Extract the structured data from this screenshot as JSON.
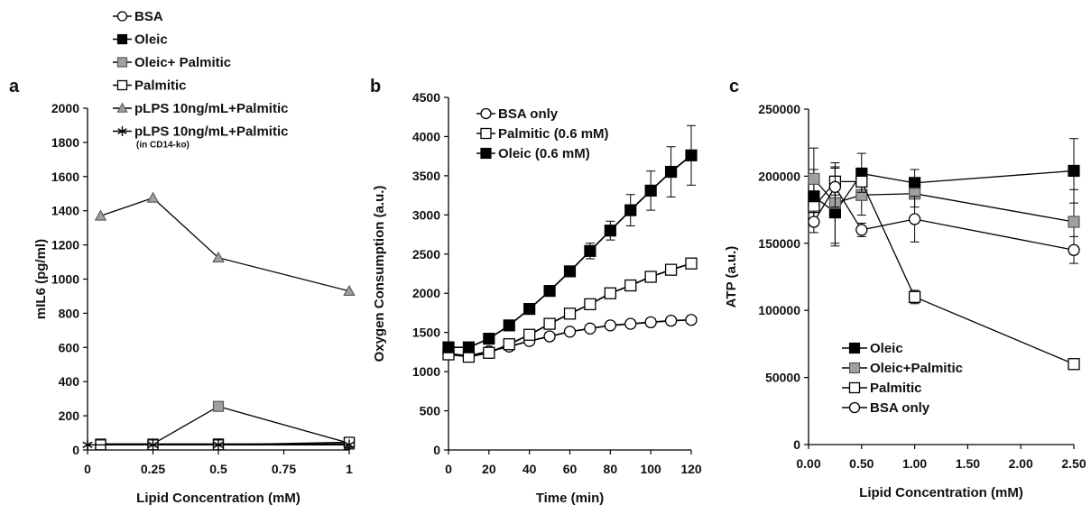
{
  "chart_data": [
    {
      "panel": "a",
      "type": "line",
      "xlabel": "Lipid Concentration (mM)",
      "ylabel": "mIL6 (pg/ml)",
      "xlim": [
        0,
        1
      ],
      "ylim": [
        0,
        2000
      ],
      "x_ticks": [
        "0",
        "0.25",
        "0.5",
        "0.75",
        "1"
      ],
      "y_ticks": [
        "0",
        "200",
        "400",
        "600",
        "800",
        "1000",
        "1200",
        "1400",
        "1600",
        "1800",
        "2000"
      ],
      "legend_position": "top",
      "series": [
        {
          "name": "BSA",
          "marker": "circle-open",
          "color": "#ffffff",
          "x": [
            0.05,
            0.25,
            0.5,
            1
          ],
          "y": [
            35,
            35,
            35,
            35
          ]
        },
        {
          "name": "Oleic",
          "marker": "square-filled",
          "color": "#000000",
          "x": [
            0.05,
            0.25,
            0.5,
            1
          ],
          "y": [
            35,
            35,
            35,
            35
          ]
        },
        {
          "name": "Oleic+ Palmitic",
          "marker": "square-gray",
          "color": "#a0a0a0",
          "x": [
            0.05,
            0.25,
            0.5,
            1
          ],
          "y": [
            35,
            35,
            255,
            40
          ]
        },
        {
          "name": "Palmitic",
          "marker": "square-open",
          "color": "#ffffff",
          "x": [
            0.05,
            0.25,
            0.5,
            1
          ],
          "y": [
            30,
            30,
            30,
            45
          ]
        },
        {
          "name": "pLPS 10ng/mL+Palmitic",
          "marker": "triangle-gray",
          "color": "#a0a0a0",
          "x": [
            0.05,
            0.25,
            0.5,
            1
          ],
          "y": [
            1370,
            1475,
            1125,
            930
          ]
        },
        {
          "name": "pLPS 10ng/mL+Palmitic",
          "name_note": "(in CD14-ko)",
          "marker": "star",
          "color": "#000000",
          "x": [
            0,
            0.25,
            0.5,
            1
          ],
          "y": [
            30,
            30,
            30,
            30
          ]
        }
      ]
    },
    {
      "panel": "b",
      "type": "line",
      "xlabel": "Time (min)",
      "ylabel": "Oxygen Consumption (a.u.)",
      "xlim": [
        0,
        120
      ],
      "ylim": [
        0,
        4500
      ],
      "x_ticks": [
        "0",
        "20",
        "40",
        "60",
        "80",
        "100",
        "120"
      ],
      "y_ticks": [
        "0",
        "500",
        "1000",
        "1500",
        "2000",
        "2500",
        "3000",
        "3500",
        "4000",
        "4500"
      ],
      "legend_position": "top-left",
      "series": [
        {
          "name": "BSA only",
          "marker": "circle-open",
          "color": "#ffffff",
          "x": [
            0,
            10,
            20,
            30,
            40,
            50,
            60,
            70,
            80,
            90,
            100,
            110,
            120
          ],
          "y": [
            1230,
            1200,
            1260,
            1320,
            1390,
            1450,
            1510,
            1550,
            1590,
            1610,
            1630,
            1650,
            1660
          ]
        },
        {
          "name": "Palmitic (0.6 mM)",
          "marker": "square-open",
          "color": "#ffffff",
          "x": [
            0,
            10,
            20,
            30,
            40,
            50,
            60,
            70,
            80,
            90,
            100,
            110,
            120
          ],
          "y": [
            1220,
            1190,
            1240,
            1350,
            1470,
            1610,
            1740,
            1860,
            2000,
            2100,
            2210,
            2300,
            2380
          ]
        },
        {
          "name": "Oleic (0.6 mM)",
          "marker": "square-filled",
          "color": "#000000",
          "x": [
            0,
            10,
            20,
            30,
            40,
            50,
            60,
            70,
            80,
            90,
            100,
            110,
            120
          ],
          "y": [
            1310,
            1310,
            1420,
            1590,
            1800,
            2030,
            2280,
            2540,
            2800,
            3060,
            3310,
            3550,
            3760
          ],
          "error": [
            0,
            0,
            0,
            0,
            0,
            0,
            0,
            100,
            120,
            200,
            250,
            320,
            380
          ]
        }
      ]
    },
    {
      "panel": "c",
      "type": "line",
      "xlabel": "Lipid Concentration (mM)",
      "ylabel": "ATP (a.u.)",
      "xlim": [
        0,
        2.5
      ],
      "ylim": [
        0,
        250000
      ],
      "x_ticks": [
        "0.00",
        "0.50",
        "1.00",
        "1.50",
        "2.00",
        "2.50"
      ],
      "y_ticks": [
        "0",
        "50000",
        "100000",
        "150000",
        "200000",
        "250000"
      ],
      "legend_position": "bottom-left",
      "series": [
        {
          "name": "Oleic",
          "marker": "square-filled",
          "color": "#000000",
          "x": [
            0.05,
            0.25,
            0.5,
            1.0,
            2.5
          ],
          "y": [
            185000,
            173000,
            202000,
            195000,
            204000
          ],
          "error": [
            20000,
            25000,
            15000,
            10000,
            24000
          ]
        },
        {
          "name": "Oleic+Palmitic",
          "marker": "square-gray",
          "color": "#a0a0a0",
          "x": [
            0.05,
            0.25,
            0.5,
            1.0,
            2.5
          ],
          "y": [
            198000,
            180000,
            186000,
            187000,
            166000
          ],
          "error": [
            23000,
            30000,
            15000,
            10000,
            24000
          ]
        },
        {
          "name": "Palmitic",
          "marker": "square-open",
          "color": "#ffffff",
          "x": [
            0.05,
            0.25,
            0.5,
            1.0,
            2.5
          ],
          "y": [
            177000,
            196000,
            196000,
            110000,
            60000
          ],
          "error": [
            10000,
            10000,
            8000,
            5000,
            3000
          ]
        },
        {
          "name": "BSA only",
          "marker": "circle-open",
          "color": "#ffffff",
          "x": [
            0.05,
            0.25,
            0.5,
            1.0,
            2.5
          ],
          "y": [
            166000,
            192000,
            160000,
            168000,
            145000
          ],
          "error": [
            8000,
            15000,
            5000,
            17000,
            10000
          ]
        }
      ]
    }
  ]
}
